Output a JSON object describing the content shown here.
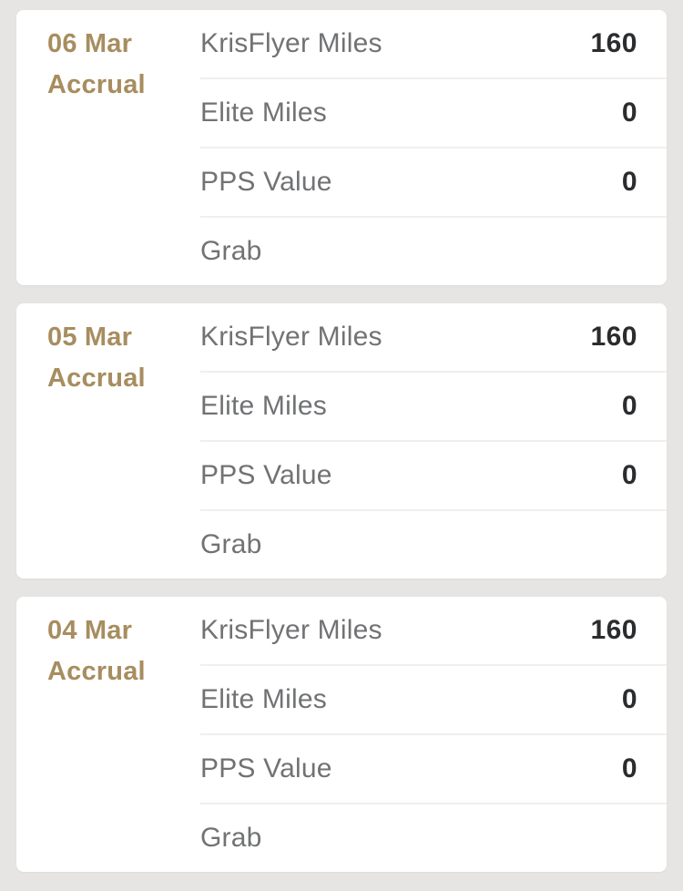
{
  "colors": {
    "bg": "#e6e5e3",
    "card_bg": "#ffffff",
    "accent_gold": "#a78d5f",
    "label_gray": "#717274",
    "value_dark": "#2b2c2e",
    "divider": "#f0efed"
  },
  "transactions": [
    {
      "date": "06 Mar",
      "type": "Accrual",
      "rows": [
        {
          "label": "KrisFlyer Miles",
          "value": "160"
        },
        {
          "label": "Elite Miles",
          "value": "0"
        },
        {
          "label": "PPS Value",
          "value": "0"
        },
        {
          "label": "Grab",
          "value": ""
        }
      ]
    },
    {
      "date": "05 Mar",
      "type": "Accrual",
      "rows": [
        {
          "label": "KrisFlyer Miles",
          "value": "160"
        },
        {
          "label": "Elite Miles",
          "value": "0"
        },
        {
          "label": "PPS Value",
          "value": "0"
        },
        {
          "label": "Grab",
          "value": ""
        }
      ]
    },
    {
      "date": "04 Mar",
      "type": "Accrual",
      "rows": [
        {
          "label": "KrisFlyer Miles",
          "value": "160"
        },
        {
          "label": "Elite Miles",
          "value": "0"
        },
        {
          "label": "PPS Value",
          "value": "0"
        },
        {
          "label": "Grab",
          "value": ""
        }
      ]
    }
  ]
}
